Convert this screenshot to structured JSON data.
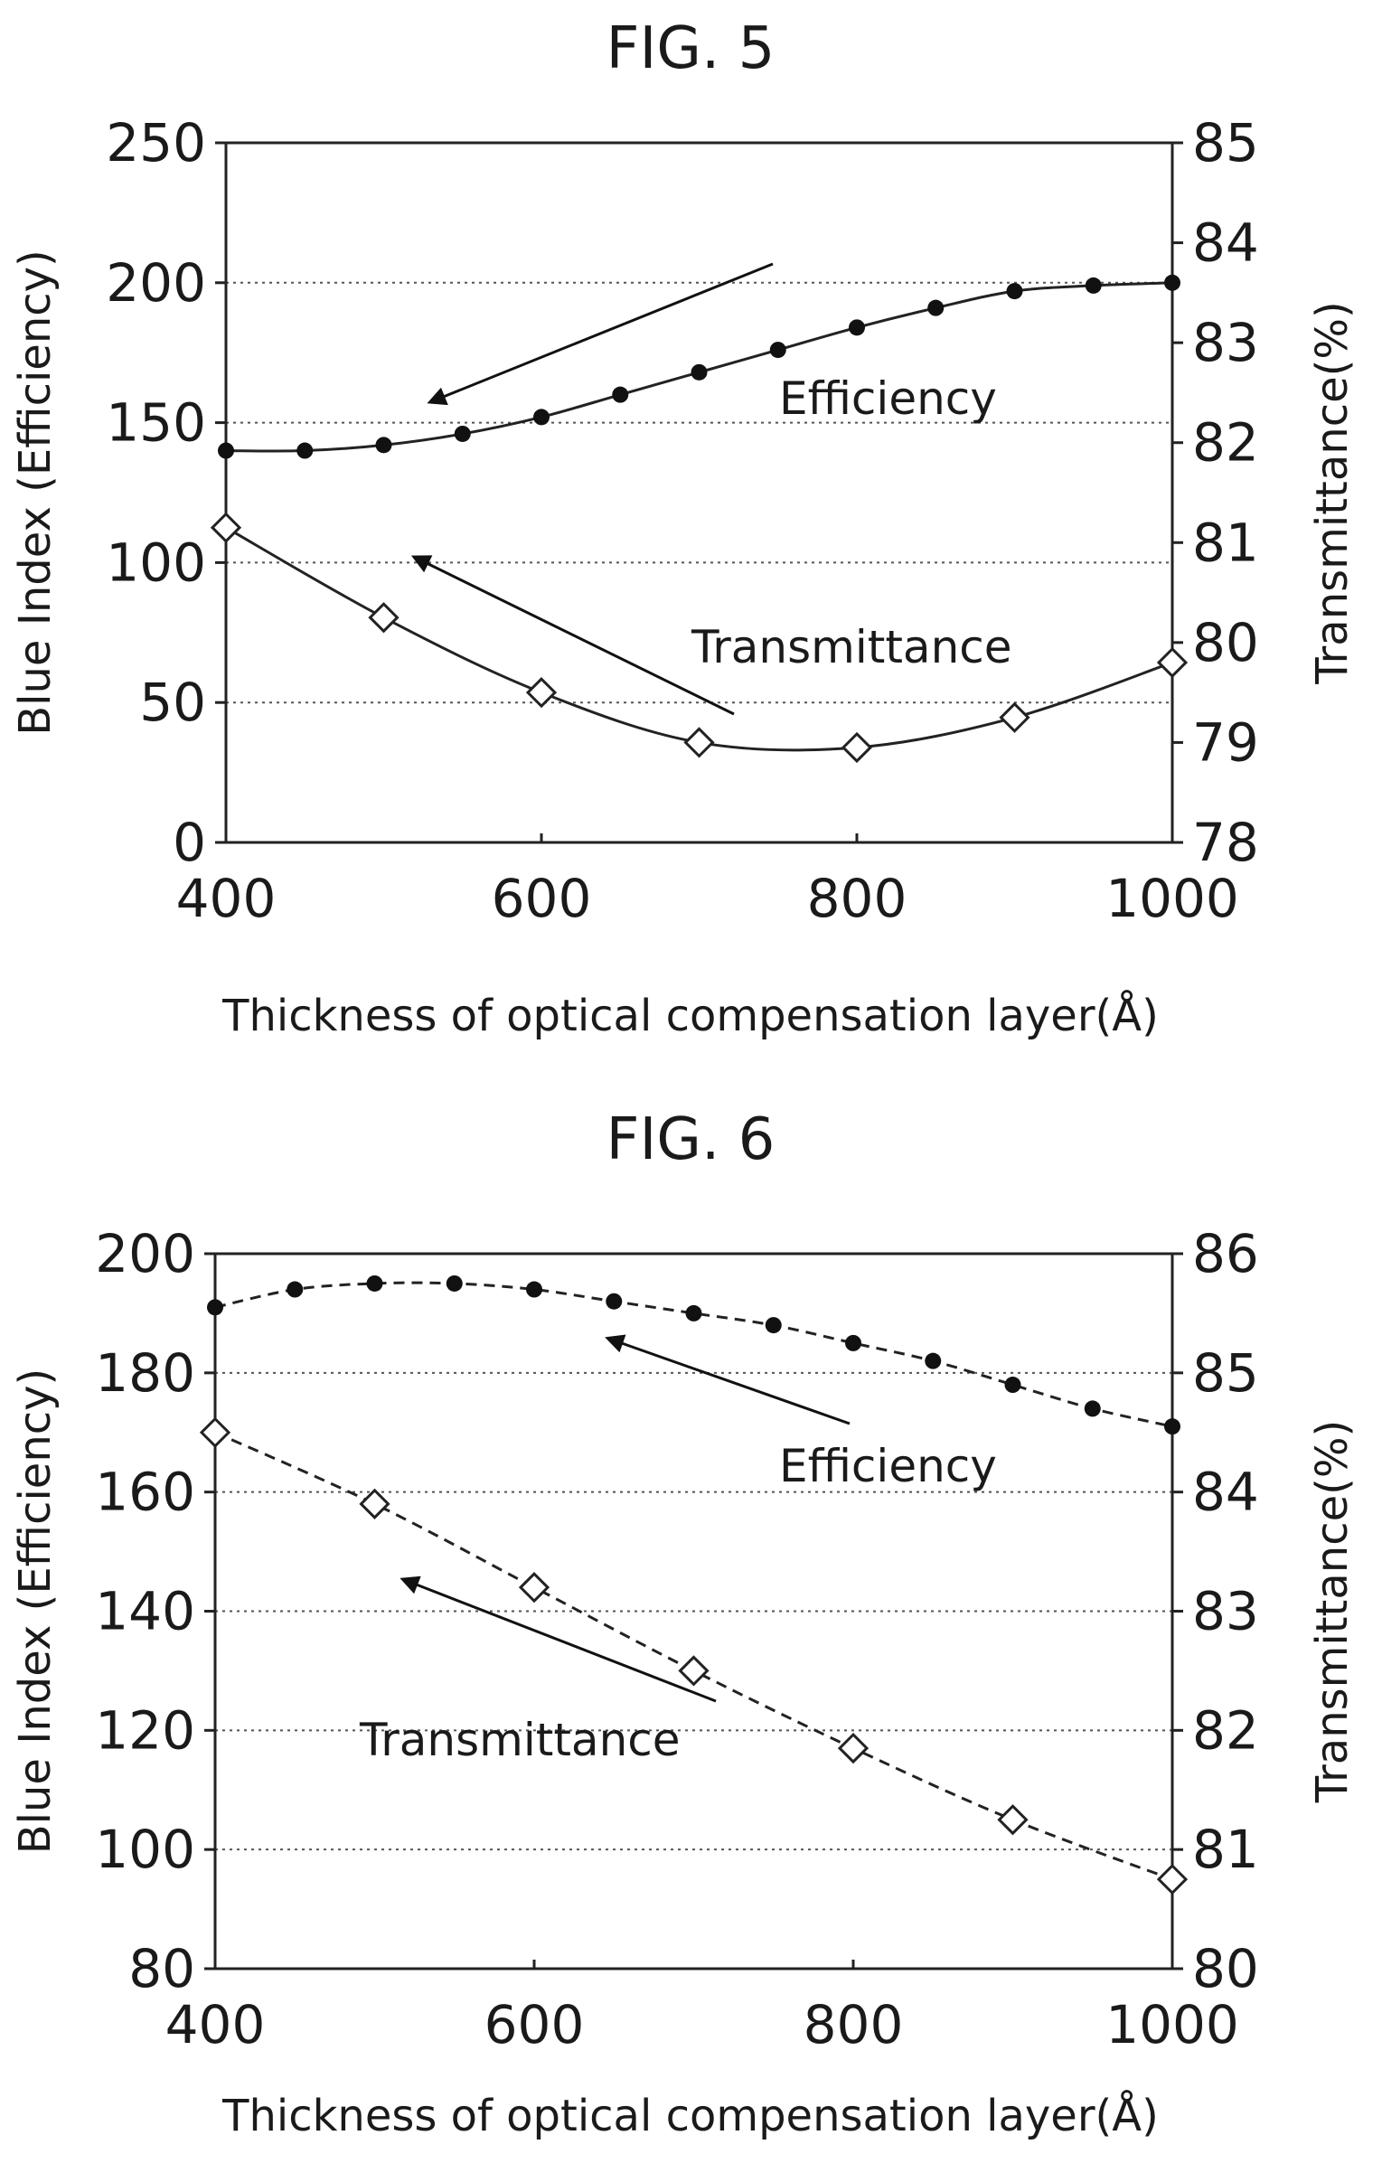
{
  "chart_data": [
    {
      "type": "line",
      "title": "FIG. 5",
      "xlabel": "Thickness of optical compensation layer(Å)",
      "ylabel": "Blue Index (Efficiency)",
      "y2label": "Transmittance(%)",
      "xlim": [
        400,
        1000
      ],
      "ylim": [
        0,
        250
      ],
      "y2lim": [
        78,
        85
      ],
      "xticks": [
        "400",
        "600",
        "800",
        "1000"
      ],
      "yticks": [
        "0",
        "50",
        "100",
        "150",
        "200",
        "250"
      ],
      "y2ticks": [
        "78",
        "79",
        "80",
        "81",
        "82",
        "83",
        "84",
        "85"
      ],
      "grid": true,
      "series": [
        {
          "name": "Efficiency",
          "axis": "left",
          "marker": "filled-circle",
          "line": "solid",
          "x": [
            400,
            450,
            500,
            550,
            600,
            650,
            700,
            750,
            800,
            850,
            900,
            950,
            1000
          ],
          "y": [
            140,
            140,
            142,
            146,
            152,
            160,
            168,
            176,
            184,
            191,
            197,
            199,
            200
          ]
        },
        {
          "name": "Transmittance",
          "axis": "right",
          "marker": "open-diamond",
          "line": "solid",
          "x": [
            400,
            500,
            600,
            700,
            800,
            900,
            1000
          ],
          "y": [
            81.15,
            80.25,
            79.5,
            79.0,
            78.95,
            79.25,
            79.8
          ]
        }
      ],
      "annotations": [
        {
          "text": "Efficiency",
          "arrow": true
        },
        {
          "text": "Transmittance",
          "arrow": true
        }
      ]
    },
    {
      "type": "line",
      "title": "FIG. 6",
      "xlabel": "Thickness of optical compensation layer(Å)",
      "ylabel": "Blue Index (Efficiency)",
      "y2label": "Transmittance(%)",
      "xlim": [
        400,
        1000
      ],
      "ylim": [
        80,
        200
      ],
      "y2lim": [
        80,
        86
      ],
      "xticks": [
        "400",
        "600",
        "800",
        "1000"
      ],
      "yticks": [
        "80",
        "100",
        "120",
        "140",
        "160",
        "180",
        "200"
      ],
      "y2ticks": [
        "80",
        "81",
        "82",
        "83",
        "84",
        "85",
        "86"
      ],
      "grid": true,
      "series": [
        {
          "name": "Efficiency",
          "axis": "left",
          "marker": "filled-circle",
          "line": "dashed",
          "x": [
            400,
            450,
            500,
            550,
            600,
            650,
            700,
            750,
            800,
            850,
            900,
            950,
            1000
          ],
          "y": [
            191,
            194,
            195,
            195,
            194,
            192,
            190,
            188,
            185,
            182,
            178,
            174,
            171
          ]
        },
        {
          "name": "Transmittance",
          "axis": "right",
          "marker": "open-diamond",
          "line": "dashed",
          "x": [
            400,
            500,
            600,
            700,
            800,
            900,
            1000
          ],
          "y": [
            84.5,
            83.9,
            83.2,
            82.5,
            81.85,
            81.25,
            80.75
          ]
        }
      ],
      "annotations": [
        {
          "text": "Efficiency",
          "arrow": true
        },
        {
          "text": "Transmittance",
          "arrow": true
        }
      ]
    }
  ]
}
